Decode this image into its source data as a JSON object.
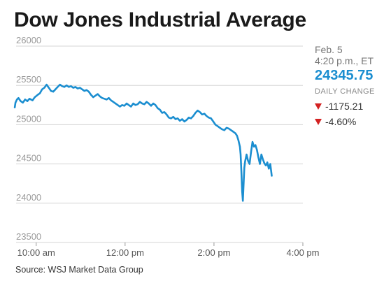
{
  "title": "Dow Jones Industrial Average",
  "source": "Source: WSJ Market Data Group",
  "side": {
    "date": "Feb. 5",
    "time": "4:20 p.m., ET",
    "price": "24345.75",
    "change_label": "DAILY CHANGE",
    "change_points": "-1175.21",
    "change_percent": "-4.60%",
    "down_color": "#d32222",
    "price_color": "#1b8ed0"
  },
  "chart_data": {
    "type": "line",
    "title": "Dow Jones Industrial Average",
    "xlabel": "",
    "ylabel": "",
    "ylim": [
      23500,
      26000
    ],
    "yticks": [
      23500,
      24000,
      24500,
      25000,
      25500,
      26000
    ],
    "xlim_minutes": [
      570,
      960
    ],
    "xticks": [
      {
        "label": "10:00 am",
        "minute": 600
      },
      {
        "label": "12:00 pm",
        "minute": 720
      },
      {
        "label": "2:00 pm",
        "minute": 840
      },
      {
        "label": "4:00 pm",
        "minute": 960
      }
    ],
    "grid": true,
    "line_color": "#1b8ed0",
    "series": [
      {
        "values": [
          [
            571,
            25220
          ],
          [
            572,
            25280
          ],
          [
            574,
            25320
          ],
          [
            576,
            25340
          ],
          [
            579,
            25300
          ],
          [
            582,
            25280
          ],
          [
            585,
            25320
          ],
          [
            588,
            25300
          ],
          [
            591,
            25330
          ],
          [
            595,
            25310
          ],
          [
            598,
            25350
          ],
          [
            602,
            25380
          ],
          [
            605,
            25400
          ],
          [
            608,
            25450
          ],
          [
            611,
            25470
          ],
          [
            614,
            25510
          ],
          [
            617,
            25470
          ],
          [
            620,
            25430
          ],
          [
            623,
            25420
          ],
          [
            626,
            25450
          ],
          [
            629,
            25480
          ],
          [
            632,
            25510
          ],
          [
            635,
            25490
          ],
          [
            638,
            25480
          ],
          [
            641,
            25500
          ],
          [
            644,
            25480
          ],
          [
            647,
            25490
          ],
          [
            650,
            25470
          ],
          [
            653,
            25480
          ],
          [
            656,
            25460
          ],
          [
            659,
            25470
          ],
          [
            662,
            25450
          ],
          [
            665,
            25430
          ],
          [
            668,
            25440
          ],
          [
            671,
            25420
          ],
          [
            674,
            25380
          ],
          [
            677,
            25350
          ],
          [
            680,
            25370
          ],
          [
            683,
            25390
          ],
          [
            686,
            25360
          ],
          [
            689,
            25340
          ],
          [
            692,
            25330
          ],
          [
            695,
            25320
          ],
          [
            698,
            25340
          ],
          [
            701,
            25310
          ],
          [
            704,
            25290
          ],
          [
            707,
            25270
          ],
          [
            710,
            25250
          ],
          [
            713,
            25230
          ],
          [
            716,
            25250
          ],
          [
            719,
            25240
          ],
          [
            722,
            25270
          ],
          [
            725,
            25250
          ],
          [
            728,
            25230
          ],
          [
            731,
            25270
          ],
          [
            734,
            25250
          ],
          [
            737,
            25260
          ],
          [
            740,
            25290
          ],
          [
            743,
            25270
          ],
          [
            746,
            25260
          ],
          [
            749,
            25290
          ],
          [
            752,
            25270
          ],
          [
            755,
            25240
          ],
          [
            758,
            25270
          ],
          [
            761,
            25250
          ],
          [
            764,
            25210
          ],
          [
            767,
            25190
          ],
          [
            770,
            25150
          ],
          [
            773,
            25160
          ],
          [
            776,
            25130
          ],
          [
            779,
            25090
          ],
          [
            782,
            25080
          ],
          [
            785,
            25100
          ],
          [
            788,
            25070
          ],
          [
            791,
            25080
          ],
          [
            794,
            25050
          ],
          [
            797,
            25070
          ],
          [
            800,
            25040
          ],
          [
            803,
            25060
          ],
          [
            806,
            25090
          ],
          [
            809,
            25080
          ],
          [
            812,
            25110
          ],
          [
            815,
            25150
          ],
          [
            818,
            25180
          ],
          [
            821,
            25160
          ],
          [
            824,
            25130
          ],
          [
            827,
            25140
          ],
          [
            830,
            25110
          ],
          [
            833,
            25090
          ],
          [
            836,
            25080
          ],
          [
            839,
            25040
          ],
          [
            842,
            25000
          ],
          [
            845,
            24980
          ],
          [
            848,
            24960
          ],
          [
            851,
            24940
          ],
          [
            854,
            24930
          ],
          [
            857,
            24960
          ],
          [
            860,
            24950
          ],
          [
            863,
            24930
          ],
          [
            866,
            24910
          ],
          [
            869,
            24890
          ],
          [
            871,
            24860
          ],
          [
            873,
            24800
          ],
          [
            875,
            24720
          ],
          [
            876,
            24620
          ],
          [
            877,
            24400
          ],
          [
            878,
            24150
          ],
          [
            879,
            24030
          ],
          [
            880,
            24250
          ],
          [
            881,
            24450
          ],
          [
            882,
            24530
          ],
          [
            884,
            24620
          ],
          [
            886,
            24540
          ],
          [
            888,
            24500
          ],
          [
            890,
            24650
          ],
          [
            892,
            24780
          ],
          [
            894,
            24720
          ],
          [
            896,
            24740
          ],
          [
            898,
            24680
          ],
          [
            900,
            24580
          ],
          [
            902,
            24500
          ],
          [
            904,
            24620
          ],
          [
            906,
            24560
          ],
          [
            908,
            24510
          ],
          [
            910,
            24480
          ],
          [
            912,
            24520
          ],
          [
            914,
            24440
          ],
          [
            916,
            24500
          ],
          [
            918,
            24350
          ]
        ]
      }
    ]
  }
}
